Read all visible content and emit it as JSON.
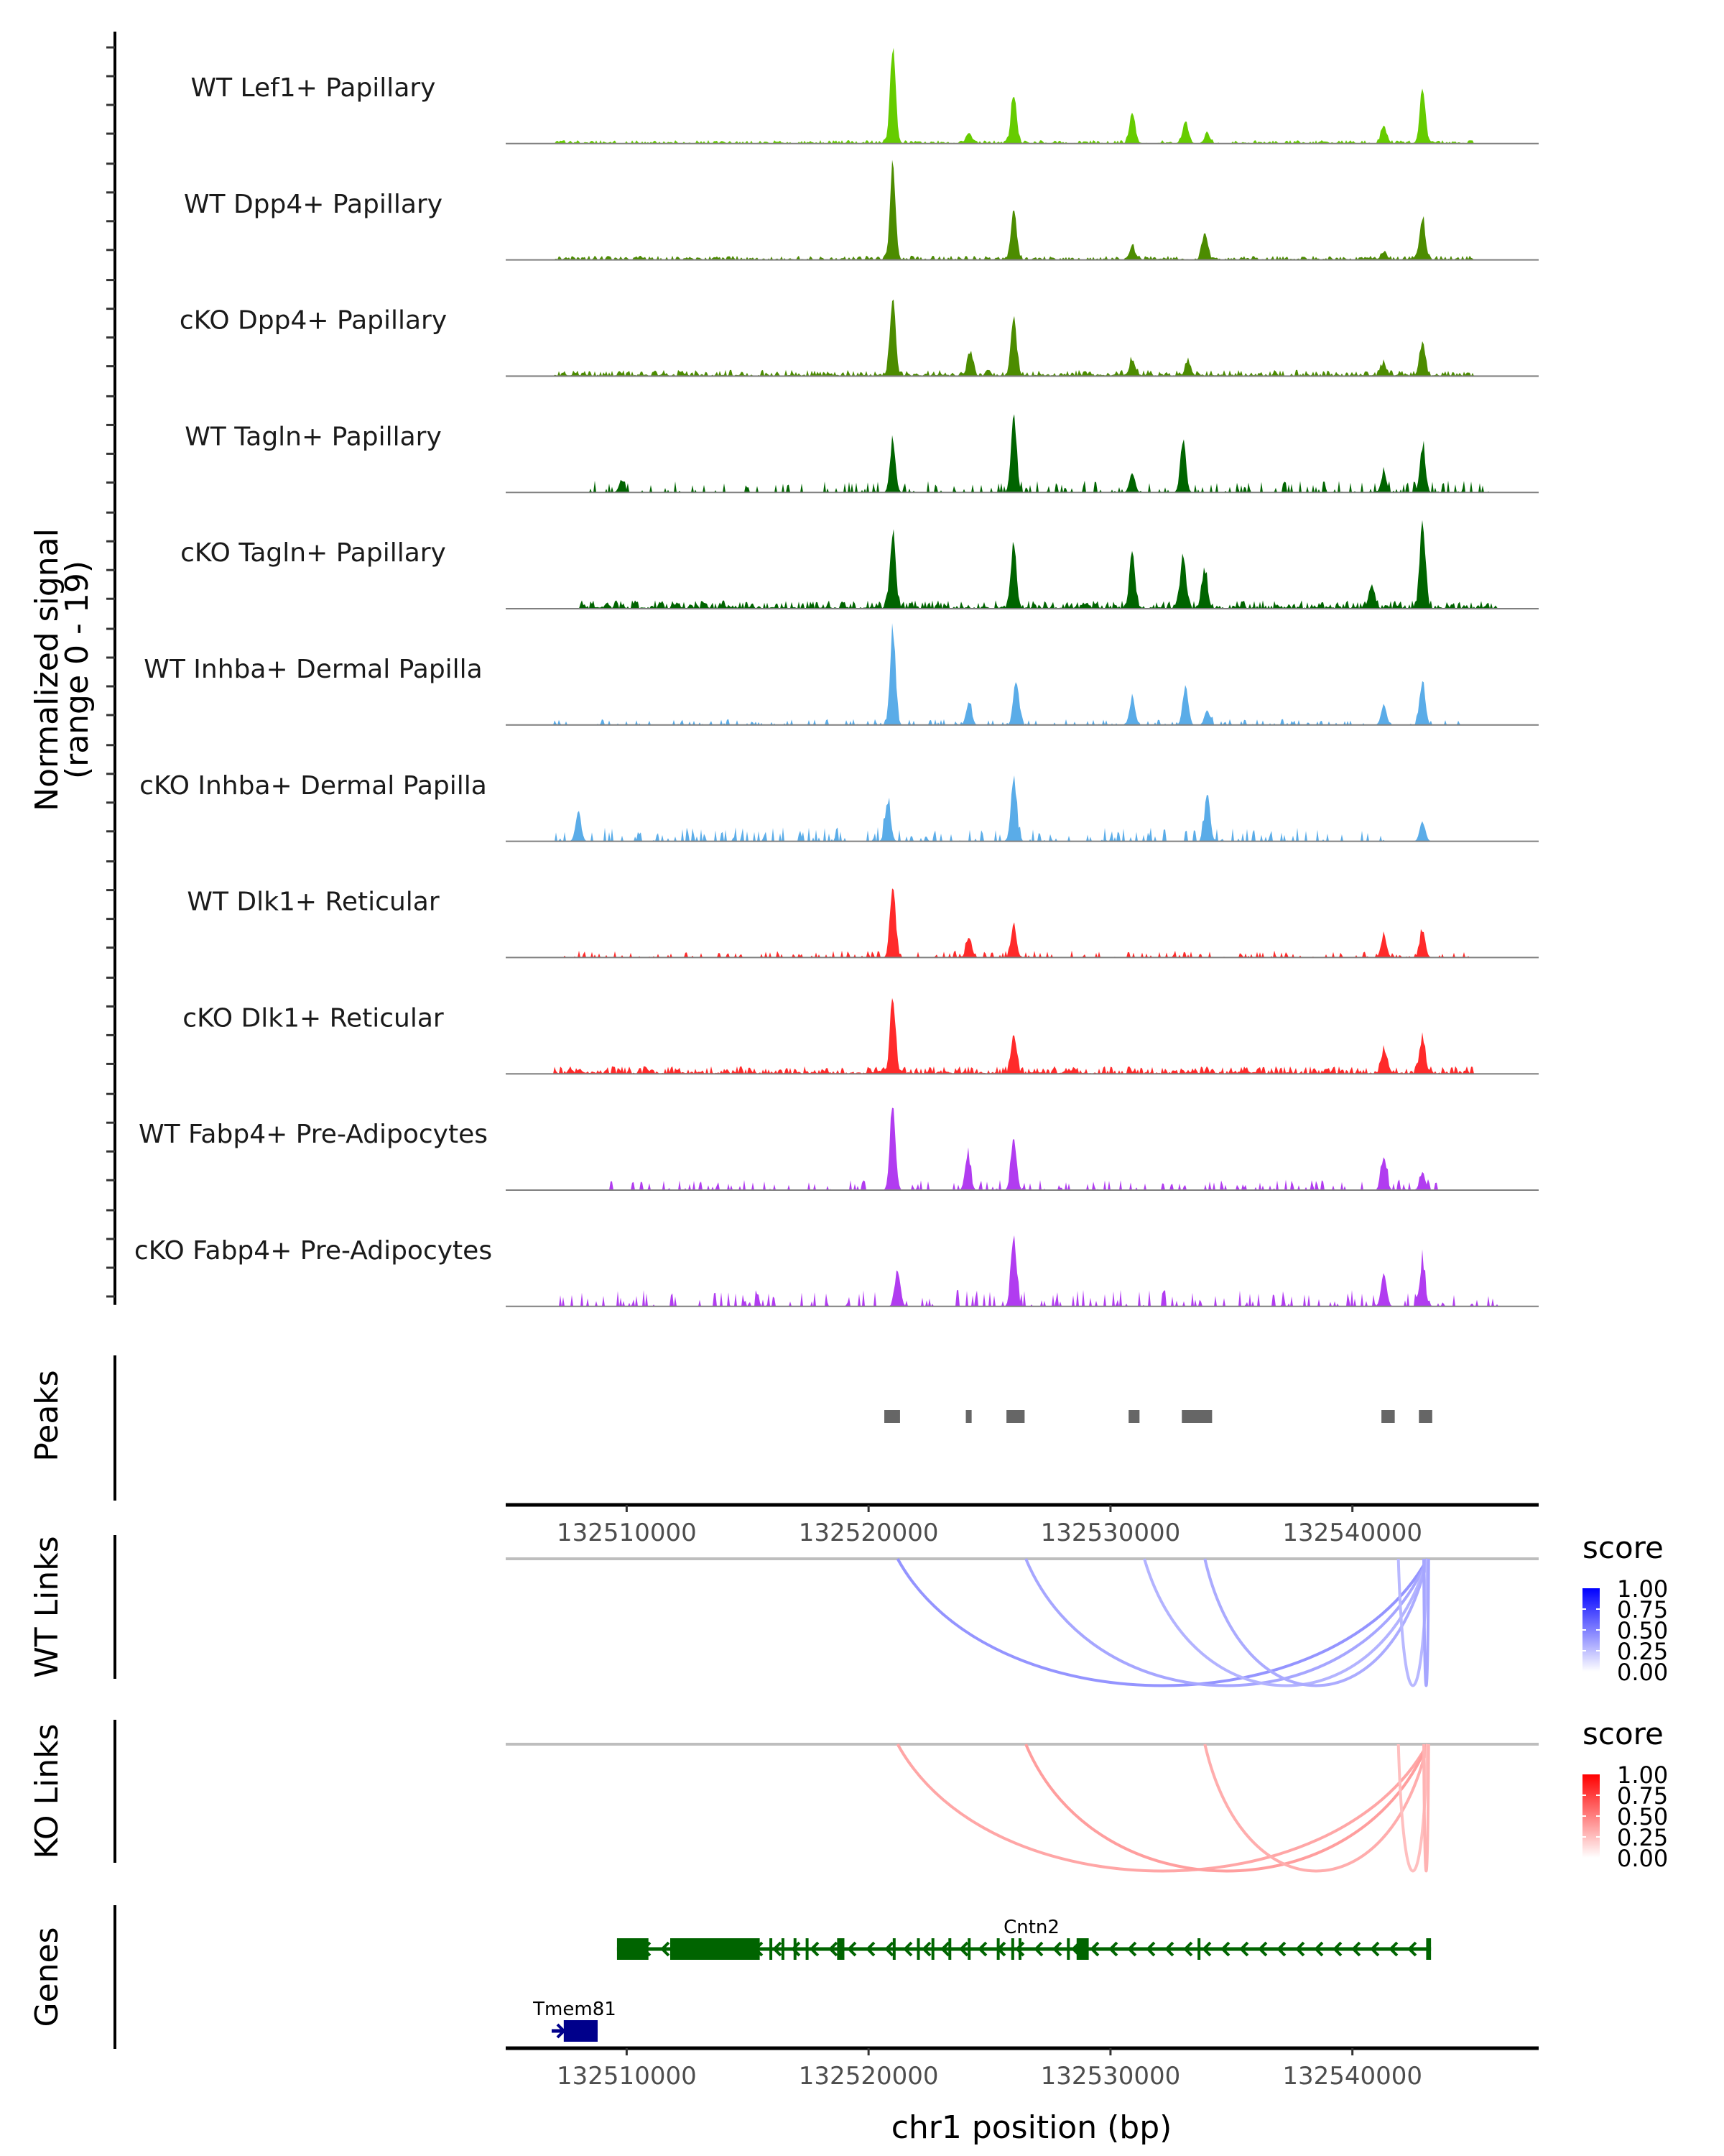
{
  "chart_data": {
    "type": "area",
    "title": "",
    "ylabel": "Normalized signal\n(range 0 - 19)",
    "ylabel_lines": [
      "Normalized signal",
      "(range 0 - 19)"
    ],
    "ylim": [
      0,
      19
    ],
    "xlabel": "chr1 position (bp)",
    "xlim": [
      132505000,
      132547700
    ],
    "xticks": [
      132510000,
      132520000,
      132530000,
      132540000
    ],
    "xtick_labels": [
      "132510000",
      "132520000",
      "132530000",
      "132540000"
    ],
    "coverage_tracks": [
      {
        "name": "WT Lef1+ Papillary",
        "color": "#66CC00",
        "noise": 0.5,
        "extent": [
          132507000,
          132545000
        ],
        "peaks": [
          [
            132521000,
            19
          ],
          [
            132524150,
            2
          ],
          [
            132526000,
            10
          ],
          [
            132530900,
            6
          ],
          [
            132533100,
            4.5
          ],
          [
            132534000,
            2
          ],
          [
            132541300,
            3.5
          ],
          [
            132542900,
            11
          ]
        ]
      },
      {
        "name": "WT Dpp4+ Papillary",
        "color": "#4C8C00",
        "noise": 0.6,
        "extent": [
          132507000,
          132545000
        ],
        "peaks": [
          [
            132521000,
            19
          ],
          [
            132526000,
            9.5
          ],
          [
            132530900,
            2.5
          ],
          [
            132533900,
            5.5
          ],
          [
            132541300,
            1.5
          ],
          [
            132542900,
            8.5
          ]
        ]
      },
      {
        "name": "cKO Dpp4+ Papillary",
        "color": "#4C8C00",
        "noise": 0.9,
        "extent": [
          132507000,
          132545000
        ],
        "peaks": [
          [
            132521000,
            15.5
          ],
          [
            132524200,
            4.5
          ],
          [
            132526000,
            12.5
          ],
          [
            132530900,
            3
          ],
          [
            132533200,
            2.5
          ],
          [
            132541300,
            2.2
          ],
          [
            132542900,
            7
          ]
        ]
      },
      {
        "name": "WT Tagln+ Papillary",
        "color": "#006400",
        "noise": 1.0,
        "sparse": true,
        "extent": [
          132508000,
          132546000
        ],
        "peaks": [
          [
            132509800,
            2.5
          ],
          [
            132521000,
            10.5
          ],
          [
            132526000,
            15.5
          ],
          [
            132530900,
            4
          ],
          [
            132533000,
            10.5
          ],
          [
            132541300,
            4
          ],
          [
            132542900,
            9
          ]
        ]
      },
      {
        "name": "cKO Tagln+ Papillary",
        "color": "#006400",
        "noise": 1.2,
        "extent": [
          132508000,
          132546000
        ],
        "peaks": [
          [
            132521000,
            15.5
          ],
          [
            132526000,
            12.5
          ],
          [
            132530900,
            10.5
          ],
          [
            132533000,
            10
          ],
          [
            132533900,
            7.5
          ],
          [
            132540800,
            4.5
          ],
          [
            132542900,
            17
          ]
        ]
      },
      {
        "name": "WT Inhba+ Dermal Papilla",
        "color": "#5AACE8",
        "noise": 0.5,
        "sparse": true,
        "extent": [
          132507000,
          132545000
        ],
        "peaks": [
          [
            132521000,
            19
          ],
          [
            132524150,
            4.5
          ],
          [
            132526100,
            9
          ],
          [
            132530900,
            5.5
          ],
          [
            132533100,
            8
          ],
          [
            132534000,
            3
          ],
          [
            132541300,
            4
          ],
          [
            132542900,
            9
          ]
        ]
      },
      {
        "name": "cKO Inhba+ Dermal Papilla",
        "color": "#5AACE8",
        "noise": 1.2,
        "sparse": true,
        "extent": [
          132507000,
          132542000
        ],
        "peaks": [
          [
            132508000,
            6
          ],
          [
            132520800,
            8
          ],
          [
            132526000,
            13
          ],
          [
            132534000,
            9.5
          ],
          [
            132542900,
            4
          ]
        ]
      },
      {
        "name": "WT Dlk1+ Reticular",
        "color": "#FF2A2A",
        "noise": 0.6,
        "sparse": true,
        "extent": [
          132507000,
          132545000
        ],
        "peaks": [
          [
            132521000,
            15
          ],
          [
            132524150,
            4.2
          ],
          [
            132526000,
            6.5
          ],
          [
            132541300,
            4.5
          ],
          [
            132542900,
            5.5
          ]
        ]
      },
      {
        "name": "cKO Dlk1+ Reticular",
        "color": "#FF2A2A",
        "noise": 1.1,
        "extent": [
          132507000,
          132545000
        ],
        "peaks": [
          [
            132521000,
            14.5
          ],
          [
            132526000,
            7.5
          ],
          [
            132541300,
            4.5
          ],
          [
            132542900,
            7
          ]
        ]
      },
      {
        "name": "WT Fabp4+ Pre-Adipocytes",
        "color": "#B13CF0",
        "noise": 0.9,
        "sparse": true,
        "extent": [
          132509000,
          132543500
        ],
        "peaks": [
          [
            132521000,
            17
          ],
          [
            132524100,
            7
          ],
          [
            132526000,
            10.5
          ],
          [
            132541300,
            7
          ],
          [
            132542900,
            3.5
          ]
        ]
      },
      {
        "name": "cKO Fabp4+ Pre-Adipocytes",
        "color": "#B13CF0",
        "noise": 1.4,
        "sparse": true,
        "extent": [
          132507000,
          132546000
        ],
        "peaks": [
          [
            132521200,
            7.5
          ],
          [
            132526000,
            14
          ],
          [
            132541300,
            7
          ],
          [
            132542900,
            8
          ]
        ]
      }
    ],
    "peaks_track": {
      "label": "Peaks",
      "color": "#666666",
      "regions": [
        [
          132520650,
          132521300
        ],
        [
          132524020,
          132524260
        ],
        [
          132525700,
          132526450
        ],
        [
          132530750,
          132531200
        ],
        [
          132532950,
          132534200
        ],
        [
          132541200,
          132541750
        ],
        [
          132542750,
          132543300
        ]
      ]
    },
    "links_tracks": [
      {
        "label": "WT Links",
        "baseline_color": "#BEBEBE",
        "color_low": "#FFFFFF",
        "color_high": "#0000FF",
        "legend_title": "score",
        "links": [
          {
            "start": 132521200,
            "end": 132543100,
            "score": 0.42
          },
          {
            "start": 132526500,
            "end": 132543100,
            "score": 0.35
          },
          {
            "start": 132531400,
            "end": 132543100,
            "score": 0.3
          },
          {
            "start": 132533900,
            "end": 132543100,
            "score": 0.33
          },
          {
            "start": 132541900,
            "end": 132543100,
            "score": 0.28
          },
          {
            "start": 132542950,
            "end": 132543150,
            "score": 0.35
          }
        ]
      },
      {
        "label": "KO Links",
        "baseline_color": "#BEBEBE",
        "color_low": "#FFFFFF",
        "color_high": "#FF0000",
        "legend_title": "score",
        "links": [
          {
            "start": 132521200,
            "end": 132543100,
            "score": 0.35
          },
          {
            "start": 132526500,
            "end": 132543100,
            "score": 0.38
          },
          {
            "start": 132533900,
            "end": 132543100,
            "score": 0.32
          },
          {
            "start": 132541900,
            "end": 132543100,
            "score": 0.25
          },
          {
            "start": 132542950,
            "end": 132543150,
            "score": 0.3
          }
        ]
      }
    ],
    "legend_ticks": [
      "1.00",
      "0.75",
      "0.50",
      "0.25",
      "0.00"
    ],
    "genes_track": {
      "label": "Genes",
      "genes": [
        {
          "name": "Cntn2",
          "strand": "-",
          "color": "#006400",
          "start": 132509600,
          "end": 132543250,
          "exons": [
            [
              132509600,
              132510900
            ],
            [
              132511800,
              132515500
            ],
            [
              132515900,
              132516000
            ],
            [
              132516400,
              132516500
            ],
            [
              132516900,
              132517000
            ],
            [
              132517400,
              132517500
            ],
            [
              132518700,
              132519000
            ],
            [
              132521000,
              132521100
            ],
            [
              132522000,
              132522100
            ],
            [
              132522600,
              132522700
            ],
            [
              132523300,
              132523400
            ],
            [
              132524100,
              132524200
            ],
            [
              132525300,
              132525400
            ],
            [
              132525900,
              132526000
            ],
            [
              132526200,
              132526300
            ],
            [
              132528200,
              132528300
            ],
            [
              132528600,
              132529100
            ],
            [
              132533600,
              132533700
            ],
            [
              132543050,
              132543250
            ]
          ]
        },
        {
          "name": "Tmem81",
          "strand": "+",
          "color": "#00008B",
          "start": 132506900,
          "end": 132508800,
          "exons": [
            [
              132507400,
              132508800
            ]
          ]
        }
      ]
    }
  }
}
